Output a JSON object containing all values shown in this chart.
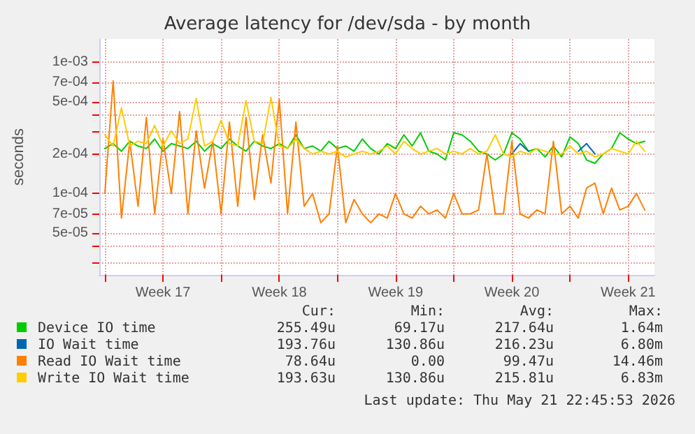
{
  "chart_data": {
    "type": "line",
    "title": "Average latency for /dev/sda - by month",
    "ylabel": "seconds",
    "x": [
      "2026-04-20T00:00",
      "2026-04-20T12:00",
      "2026-04-21T00:00",
      "2026-04-21T12:00",
      "2026-04-22T00:00",
      "2026-04-22T12:00",
      "2026-04-23T00:00",
      "2026-04-23T12:00",
      "2026-04-24T00:00",
      "2026-04-24T12:00",
      "2026-04-25T00:00",
      "2026-04-25T12:00",
      "2026-04-26T00:00",
      "2026-04-26T12:00",
      "2026-04-27T00:00",
      "2026-04-27T12:00",
      "2026-04-28T00:00",
      "2026-04-28T12:00",
      "2026-04-29T00:00",
      "2026-04-29T12:00",
      "2026-04-30T00:00",
      "2026-04-30T12:00",
      "2026-05-01T00:00",
      "2026-05-01T12:00",
      "2026-05-02T00:00",
      "2026-05-02T12:00",
      "2026-05-03T00:00",
      "2026-05-03T12:00",
      "2026-05-04T00:00",
      "2026-05-04T12:00",
      "2026-05-05T00:00",
      "2026-05-05T12:00",
      "2026-05-06T00:00",
      "2026-05-06T12:00",
      "2026-05-07T00:00",
      "2026-05-07T12:00",
      "2026-05-08T00:00",
      "2026-05-08T12:00",
      "2026-05-09T00:00",
      "2026-05-09T12:00",
      "2026-05-10T00:00",
      "2026-05-10T12:00",
      "2026-05-11T00:00",
      "2026-05-11T12:00",
      "2026-05-12T00:00",
      "2026-05-12T12:00",
      "2026-05-13T00:00",
      "2026-05-13T12:00",
      "2026-05-14T00:00",
      "2026-05-14T12:00",
      "2026-05-15T00:00",
      "2026-05-15T12:00",
      "2026-05-16T00:00",
      "2026-05-16T12:00",
      "2026-05-17T00:00",
      "2026-05-17T12:00",
      "2026-05-18T00:00",
      "2026-05-18T12:00",
      "2026-05-19T00:00",
      "2026-05-19T12:00",
      "2026-05-20T00:00",
      "2026-05-20T12:00",
      "2026-05-21T00:00",
      "2026-05-21T12:00",
      "2026-05-22T00:00",
      "2026-05-22T12:00"
    ],
    "series": [
      {
        "name": "Device IO time",
        "color": "#00cc00",
        "values": [
          0.00022,
          0.00024,
          0.00021,
          0.00025,
          0.00023,
          0.00022,
          0.00026,
          0.00021,
          0.00024,
          0.00023,
          0.00022,
          0.00025,
          0.00021,
          0.00024,
          0.00022,
          0.00026,
          0.00023,
          0.00021,
          0.00025,
          0.00023,
          0.00022,
          0.00024,
          0.00022,
          0.00028,
          0.00022,
          0.00023,
          0.00021,
          0.00025,
          0.00022,
          0.00023,
          0.00021,
          0.00026,
          0.00022,
          0.0002,
          0.00024,
          0.00022,
          0.00028,
          0.00023,
          0.00029,
          0.00021,
          0.0002,
          0.00018,
          0.00029,
          0.00028,
          0.00025,
          0.00021,
          0.0002,
          0.00018,
          0.0002,
          0.00029,
          0.00026,
          0.00021,
          0.00022,
          0.00019,
          0.00023,
          0.00019,
          0.00027,
          0.00024,
          0.00018,
          0.00017,
          0.0002,
          0.00022,
          0.00029,
          0.00026,
          0.00024,
          0.00025
        ]
      },
      {
        "name": "IO Wait time",
        "color": "#0066b3",
        "values": [
          null,
          null,
          null,
          null,
          null,
          null,
          null,
          null,
          null,
          null,
          null,
          null,
          null,
          null,
          null,
          null,
          null,
          null,
          null,
          null,
          null,
          null,
          null,
          null,
          null,
          null,
          null,
          null,
          null,
          null,
          null,
          null,
          null,
          null,
          null,
          null,
          null,
          null,
          null,
          null,
          null,
          null,
          null,
          null,
          null,
          null,
          null,
          null,
          null,
          0.0002,
          0.00024,
          0.00021,
          null,
          null,
          null,
          null,
          null,
          0.00021,
          0.00024,
          0.0002,
          null,
          null,
          null,
          null,
          null,
          null
        ]
      },
      {
        "name": "Read IO Wait time",
        "color": "#ff8000",
        "values": [
          0.0001,
          0.00072,
          6.5e-05,
          0.00025,
          8e-05,
          0.00038,
          7e-05,
          0.00026,
          0.0001,
          0.00042,
          7e-05,
          0.0003,
          0.00011,
          0.00025,
          7e-05,
          0.00035,
          8e-05,
          0.00038,
          9e-05,
          0.00028,
          0.00012,
          0.00052,
          7e-05,
          0.00035,
          8e-05,
          0.0001,
          6e-05,
          7e-05,
          0.00023,
          6e-05,
          9e-05,
          7e-05,
          6e-05,
          7e-05,
          6.5e-05,
          0.0001,
          7e-05,
          6.5e-05,
          8e-05,
          7e-05,
          7.5e-05,
          6.5e-05,
          0.0001,
          7e-05,
          7e-05,
          7.5e-05,
          0.0002,
          7e-05,
          7e-05,
          0.00025,
          7e-05,
          6.5e-05,
          7.5e-05,
          7e-05,
          0.00025,
          7e-05,
          8e-05,
          6.5e-05,
          0.00011,
          0.00012,
          7e-05,
          0.00011,
          7.5e-05,
          8e-05,
          0.0001,
          7.5e-05
        ]
      },
      {
        "name": "Write IO Wait time",
        "color": "#ffcc00",
        "values": [
          0.00028,
          0.00023,
          0.00045,
          0.00023,
          0.00025,
          0.00024,
          0.00033,
          0.00023,
          0.0003,
          0.00024,
          0.00026,
          0.00053,
          0.00023,
          0.00025,
          0.00036,
          0.00024,
          0.00023,
          0.00051,
          0.00025,
          0.00024,
          0.00054,
          0.00023,
          0.00022,
          0.00026,
          0.00022,
          0.0002,
          0.00021,
          0.0002,
          0.00021,
          0.00019,
          0.0002,
          0.00021,
          0.0002,
          0.00021,
          0.00023,
          0.0002,
          0.00025,
          0.00022,
          0.0002,
          0.00021,
          0.00022,
          0.0002,
          0.00021,
          0.0002,
          0.00022,
          0.0002,
          0.00021,
          0.00028,
          0.0002,
          0.00019,
          0.00021,
          0.0002,
          0.00022,
          0.00021,
          0.0002,
          0.0002,
          0.00023,
          0.0002,
          0.00021,
          0.00019,
          0.0002,
          0.00022,
          0.00021,
          0.0002,
          0.00025,
          0.00021
        ]
      }
    ],
    "xlim": [
      "2026-04-19T16:00",
      "2026-05-23T02:00"
    ],
    "xticks": [
      {
        "value": "2026-04-20T00:00",
        "label": null
      },
      {
        "value": "2026-04-23T12:00",
        "label": "Week 17"
      },
      {
        "value": "2026-04-27T00:00",
        "label": null
      },
      {
        "value": "2026-04-30T12:00",
        "label": "Week 18"
      },
      {
        "value": "2026-05-04T00:00",
        "label": null
      },
      {
        "value": "2026-05-07T12:00",
        "label": "Week 19"
      },
      {
        "value": "2026-05-11T00:00",
        "label": null
      },
      {
        "value": "2026-05-14T12:00",
        "label": "Week 20"
      },
      {
        "value": "2026-05-18T00:00",
        "label": null
      },
      {
        "value": "2026-05-21T12:00",
        "label": "Week 21"
      }
    ],
    "ylim": [
      2.4e-05,
      0.0015
    ],
    "yticks": [
      {
        "value": 3e-05,
        "label": null
      },
      {
        "value": 4e-05,
        "label": null
      },
      {
        "value": 5e-05,
        "label": "5e-05"
      },
      {
        "value": 7e-05,
        "label": "7e-05"
      },
      {
        "value": 0.0001,
        "label": "1e-04"
      },
      {
        "value": 0.0002,
        "label": "2e-04"
      },
      {
        "value": 0.0003,
        "label": null
      },
      {
        "value": 0.0004,
        "label": null
      },
      {
        "value": 0.0005,
        "label": "5e-04"
      },
      {
        "value": 0.0007,
        "label": "7e-04"
      },
      {
        "value": 0.001,
        "label": "1e-03"
      }
    ],
    "log": "y",
    "grid": true,
    "legend": "bottom",
    "marker": "none",
    "line_style": "solid",
    "annotations": [
      "Cur:",
      "Min:",
      "Avg:",
      "Max:",
      "255.49u",
      "69.17u",
      "217.64u",
      "1.64m",
      "193.76u",
      "130.86u",
      "216.23u",
      "6.80m",
      "78.64u",
      "0.00",
      "99.47u",
      "14.46m",
      "193.63u",
      "130.86u",
      "215.81u",
      "6.83m",
      "Last update: Thu May 21 22:45:53 2026"
    ]
  }
}
